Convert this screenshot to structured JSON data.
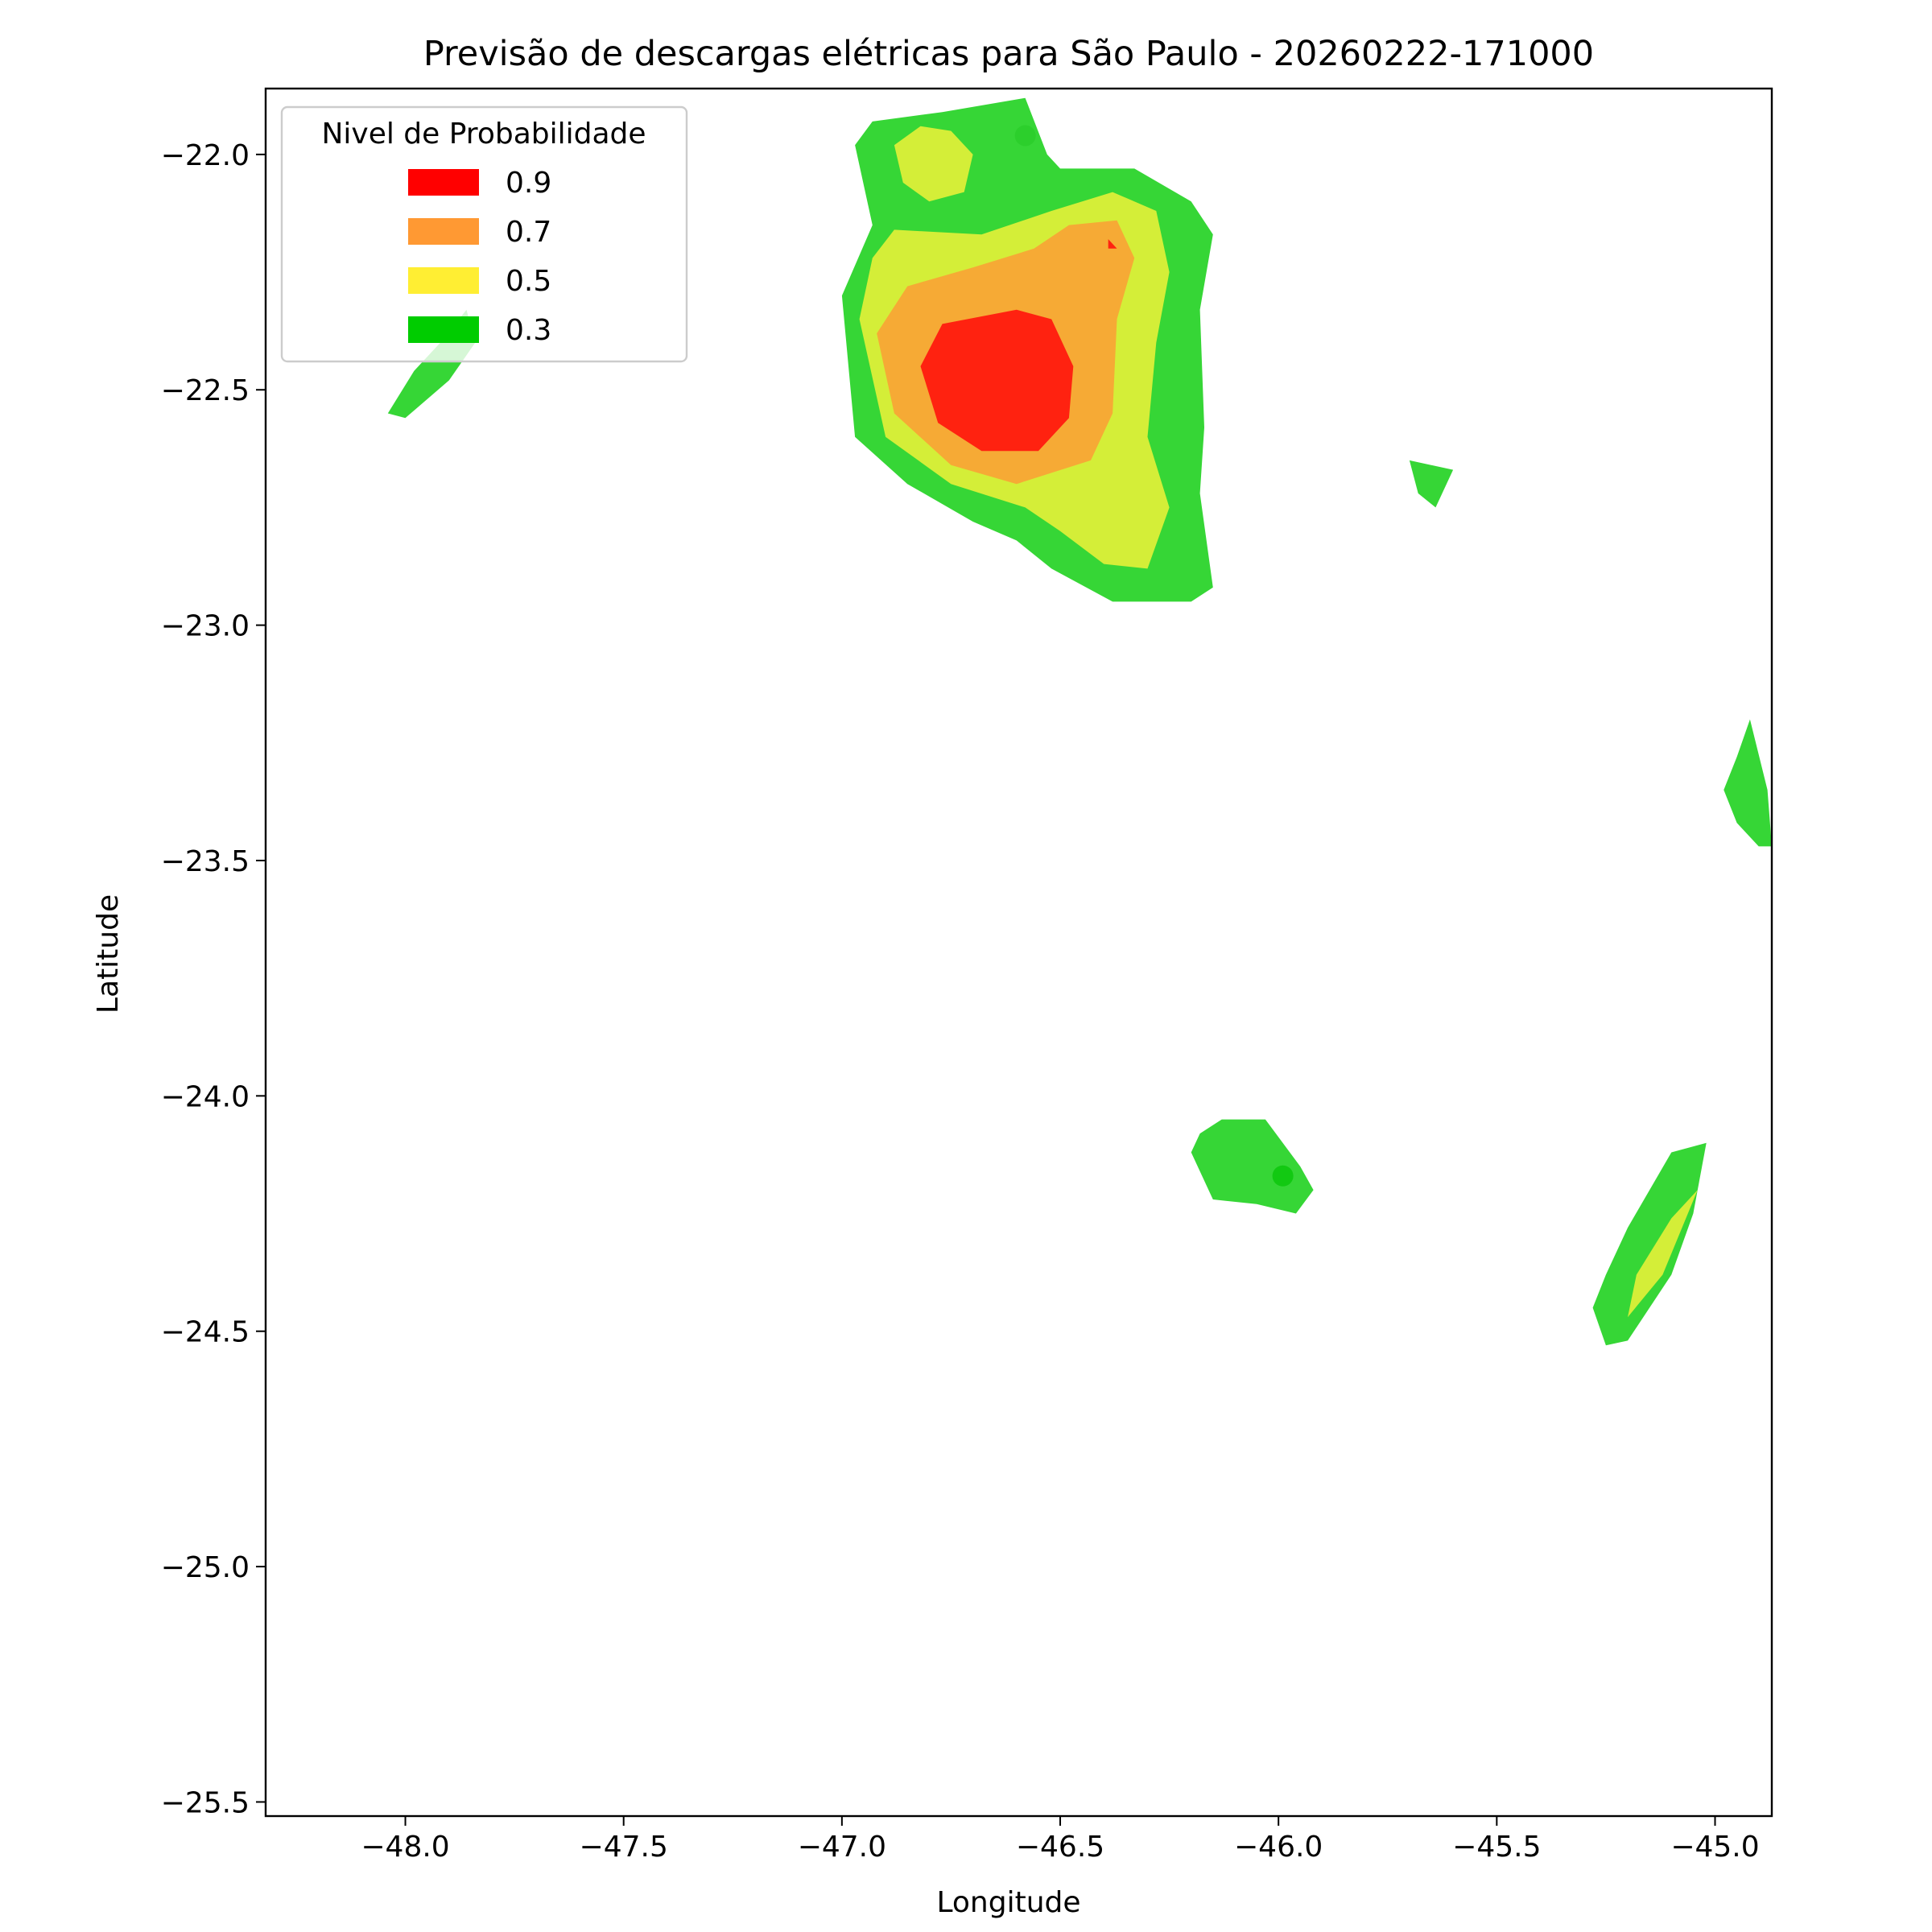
{
  "chart_data": {
    "type": "contour_map",
    "title": "Previsão de descargas elétricas para São Paulo - 20260222-171000",
    "xlabel": "Longitude",
    "ylabel": "Latitude",
    "xlim": [
      -48.32,
      -44.87
    ],
    "ylim": [
      -25.53,
      -21.86
    ],
    "xticks": [
      -48.0,
      -47.5,
      -47.0,
      -46.5,
      -46.0,
      -45.5,
      -45.0
    ],
    "yticks": [
      -22.0,
      -22.5,
      -23.0,
      -23.5,
      -24.0,
      -24.5,
      -25.0,
      -25.5
    ],
    "xtick_labels": [
      "−48.0",
      "−47.5",
      "−47.0",
      "−46.5",
      "−46.0",
      "−45.5",
      "−45.0"
    ],
    "ytick_labels": [
      "−22.0",
      "−22.5",
      "−23.0",
      "−23.5",
      "−24.0",
      "−24.5",
      "−25.0",
      "−25.5"
    ],
    "grid": false,
    "legend": {
      "title": "Nivel de Probabilidade",
      "placement": "top-left",
      "entries": [
        {
          "label": "0.9",
          "color": "#ff0000"
        },
        {
          "label": "0.7",
          "color": "#ff9933"
        },
        {
          "label": "0.5",
          "color": "#ffee33"
        },
        {
          "label": "0.3",
          "color": "#00cc00"
        }
      ]
    },
    "fill_colors": {
      "0.3": "#36d636",
      "0.5": "#d4ee38",
      "0.7": "#f6aa35",
      "0.9": "#ff2210"
    },
    "regions": [
      {
        "name": "main-cell-0.3",
        "level": "0.3",
        "polygon": [
          [
            -46.93,
            -21.93
          ],
          [
            -46.77,
            -21.91
          ],
          [
            -46.58,
            -21.88
          ],
          [
            -46.53,
            -22.0
          ],
          [
            -46.5,
            -22.03
          ],
          [
            -46.33,
            -22.03
          ],
          [
            -46.2,
            -22.1
          ],
          [
            -46.15,
            -22.17
          ],
          [
            -46.18,
            -22.33
          ],
          [
            -46.17,
            -22.58
          ],
          [
            -46.18,
            -22.72
          ],
          [
            -46.15,
            -22.92
          ],
          [
            -46.2,
            -22.95
          ],
          [
            -46.38,
            -22.95
          ],
          [
            -46.52,
            -22.88
          ],
          [
            -46.6,
            -22.82
          ],
          [
            -46.7,
            -22.78
          ],
          [
            -46.85,
            -22.7
          ],
          [
            -46.97,
            -22.6
          ],
          [
            -47.0,
            -22.3
          ],
          [
            -46.93,
            -22.15
          ],
          [
            -46.97,
            -21.98
          ]
        ]
      },
      {
        "name": "main-cell-0.5-north",
        "level": "0.5",
        "polygon": [
          [
            -46.88,
            -21.98
          ],
          [
            -46.82,
            -21.94
          ],
          [
            -46.75,
            -21.95
          ],
          [
            -46.7,
            -22.0
          ],
          [
            -46.72,
            -22.08
          ],
          [
            -46.8,
            -22.1
          ],
          [
            -46.86,
            -22.06
          ]
        ]
      },
      {
        "name": "main-cell-0.5",
        "level": "0.5",
        "polygon": [
          [
            -46.88,
            -22.16
          ],
          [
            -46.68,
            -22.17
          ],
          [
            -46.52,
            -22.12
          ],
          [
            -46.38,
            -22.08
          ],
          [
            -46.28,
            -22.12
          ],
          [
            -46.25,
            -22.25
          ],
          [
            -46.28,
            -22.4
          ],
          [
            -46.3,
            -22.6
          ],
          [
            -46.25,
            -22.75
          ],
          [
            -46.3,
            -22.88
          ],
          [
            -46.4,
            -22.87
          ],
          [
            -46.5,
            -22.8
          ],
          [
            -46.58,
            -22.75
          ],
          [
            -46.75,
            -22.7
          ],
          [
            -46.9,
            -22.6
          ],
          [
            -46.96,
            -22.35
          ],
          [
            -46.93,
            -22.22
          ]
        ]
      },
      {
        "name": "main-cell-0.7",
        "level": "0.7",
        "polygon": [
          [
            -46.85,
            -22.28
          ],
          [
            -46.7,
            -22.24
          ],
          [
            -46.56,
            -22.2
          ],
          [
            -46.48,
            -22.15
          ],
          [
            -46.37,
            -22.14
          ],
          [
            -46.33,
            -22.22
          ],
          [
            -46.37,
            -22.35
          ],
          [
            -46.38,
            -22.55
          ],
          [
            -46.43,
            -22.65
          ],
          [
            -46.6,
            -22.7
          ],
          [
            -46.75,
            -22.66
          ],
          [
            -46.88,
            -22.55
          ],
          [
            -46.92,
            -22.38
          ]
        ]
      },
      {
        "name": "main-cell-0.9",
        "level": "0.9",
        "polygon": [
          [
            -46.77,
            -22.36
          ],
          [
            -46.6,
            -22.33
          ],
          [
            -46.52,
            -22.35
          ],
          [
            -46.47,
            -22.45
          ],
          [
            -46.48,
            -22.56
          ],
          [
            -46.55,
            -22.63
          ],
          [
            -46.68,
            -22.63
          ],
          [
            -46.78,
            -22.57
          ],
          [
            -46.82,
            -22.45
          ]
        ]
      },
      {
        "name": "main-cell-0.9-spot",
        "level": "0.9",
        "polygon": [
          [
            -46.39,
            -22.18
          ],
          [
            -46.37,
            -22.2
          ],
          [
            -46.39,
            -22.2
          ]
        ]
      },
      {
        "name": "northwest-streak-0.3",
        "level": "0.3",
        "polygon": [
          [
            -47.86,
            -22.33
          ],
          [
            -47.92,
            -22.4
          ],
          [
            -47.98,
            -22.46
          ],
          [
            -48.04,
            -22.55
          ],
          [
            -48.0,
            -22.56
          ],
          [
            -47.9,
            -22.48
          ],
          [
            -47.84,
            -22.4
          ]
        ]
      },
      {
        "name": "east-fragment-0.3",
        "level": "0.3",
        "polygon": [
          [
            -45.7,
            -22.65
          ],
          [
            -45.6,
            -22.67
          ],
          [
            -45.64,
            -22.75
          ],
          [
            -45.68,
            -22.72
          ]
        ]
      },
      {
        "name": "east-edge-0.3",
        "level": "0.3",
        "polygon": [
          [
            -44.92,
            -23.2
          ],
          [
            -44.88,
            -23.35
          ],
          [
            -44.87,
            -23.47
          ],
          [
            -44.9,
            -23.47
          ],
          [
            -44.95,
            -23.42
          ],
          [
            -44.98,
            -23.35
          ],
          [
            -44.95,
            -23.28
          ]
        ]
      },
      {
        "name": "southeast-cell-0.3",
        "level": "0.3",
        "polygon": [
          [
            -46.18,
            -24.08
          ],
          [
            -46.13,
            -24.05
          ],
          [
            -46.03,
            -24.05
          ],
          [
            -45.95,
            -24.15
          ],
          [
            -45.92,
            -24.2
          ],
          [
            -45.96,
            -24.25
          ],
          [
            -46.05,
            -24.23
          ],
          [
            -46.15,
            -24.22
          ],
          [
            -46.2,
            -24.12
          ]
        ]
      },
      {
        "name": "southern-streak-0.3",
        "level": "0.3",
        "polygon": [
          [
            -45.02,
            -24.1
          ],
          [
            -45.1,
            -24.12
          ],
          [
            -45.2,
            -24.28
          ],
          [
            -45.25,
            -24.38
          ],
          [
            -45.28,
            -24.45
          ],
          [
            -45.25,
            -24.53
          ],
          [
            -45.2,
            -24.52
          ],
          [
            -45.1,
            -24.38
          ],
          [
            -45.05,
            -24.25
          ]
        ]
      },
      {
        "name": "southern-streak-0.5",
        "level": "0.5",
        "polygon": [
          [
            -45.04,
            -24.2
          ],
          [
            -45.1,
            -24.26
          ],
          [
            -45.18,
            -24.38
          ],
          [
            -45.2,
            -24.47
          ],
          [
            -45.12,
            -24.38
          ]
        ]
      }
    ],
    "markers": [
      {
        "name": "dot-north",
        "x": -46.58,
        "y": -21.96,
        "color": "#2ccf2c"
      },
      {
        "name": "dot-southeast",
        "x": -45.99,
        "y": -24.17,
        "color": "#12c912"
      }
    ]
  }
}
